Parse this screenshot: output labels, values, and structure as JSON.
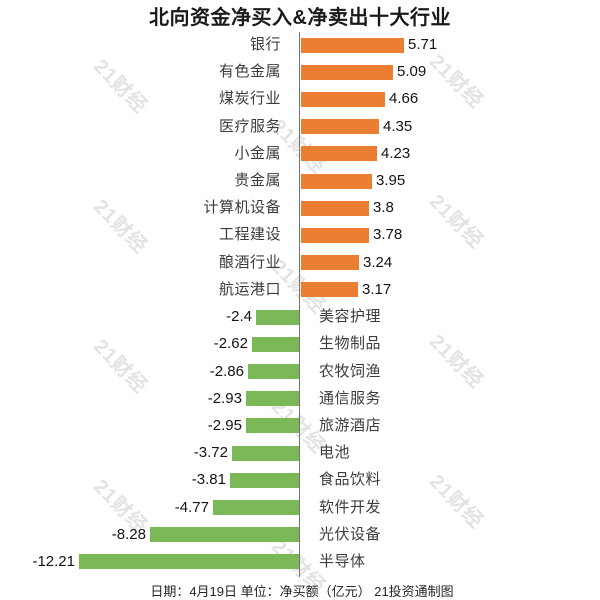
{
  "title": "北向资金净买入&净卖出十大行业",
  "footer": "日期：4月19日 单位：净买额（亿元） 21投资通制图",
  "watermark": {
    "text": "21财经",
    "color": "#e3e3e3"
  },
  "colors": {
    "positive_bar": "#EC7E33",
    "negative_bar": "#7BB857",
    "axis": "#737373",
    "title_text": "#1a1a1a",
    "category_text": "#3c3c3c",
    "value_text": "#141414"
  },
  "chart_data": {
    "type": "bar",
    "orientation": "horizontal",
    "title": "北向资金净买入&净卖出十大行业",
    "unit": "净买额（亿元）",
    "date": "4月19日",
    "source": "21投资通制图",
    "grid": false,
    "legend": false,
    "zero_axis": true,
    "xlim": [
      -12.5,
      6
    ],
    "categories": [
      "银行",
      "有色金属",
      "煤炭行业",
      "医疗服务",
      "小金属",
      "贵金属",
      "计算机设备",
      "工程建设",
      "酿酒行业",
      "航运港口",
      "美容护理",
      "生物制品",
      "农牧饲渔",
      "通信服务",
      "旅游酒店",
      "电池",
      "食品饮料",
      "软件开发",
      "光伏设备",
      "半导体"
    ],
    "values": [
      5.71,
      5.09,
      4.66,
      4.35,
      4.23,
      3.95,
      3.8,
      3.78,
      3.24,
      3.17,
      -2.4,
      -2.62,
      -2.86,
      -2.93,
      -2.95,
      -3.72,
      -3.81,
      -4.77,
      -8.28,
      -12.21
    ],
    "value_labels": [
      "5.71",
      "5.09",
      "4.66",
      "4.35",
      "4.23",
      "3.95",
      "3.8",
      "3.78",
      "3.24",
      "3.17",
      "-2.4",
      "-2.62",
      "-2.86",
      "-2.93",
      "-2.95",
      "-3.72",
      "-3.81",
      "-4.77",
      "-8.28",
      "-12.21"
    ]
  }
}
